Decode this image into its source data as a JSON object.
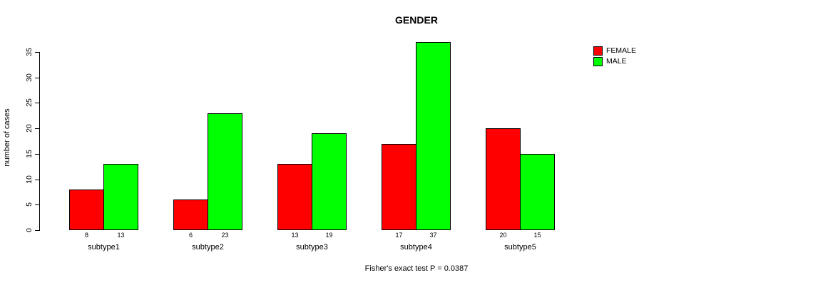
{
  "chart_data": {
    "type": "bar",
    "title": "GENDER",
    "ylabel": "number of cases",
    "caption": "Fisher's exact test P = 0.0387",
    "categories": [
      "subtype1",
      "subtype2",
      "subtype3",
      "subtype4",
      "subtype5"
    ],
    "series": [
      {
        "name": "FEMALE",
        "color": "#ff0000",
        "values": [
          8,
          6,
          13,
          17,
          20
        ]
      },
      {
        "name": "MALE",
        "color": "#00ff00",
        "values": [
          13,
          23,
          19,
          37,
          15
        ]
      }
    ],
    "ylim": [
      0,
      35
    ],
    "yticks": [
      0,
      5,
      10,
      15,
      20,
      25,
      30,
      35
    ],
    "legend_position": "top-right",
    "value_labels_shown": true,
    "grid": false,
    "colors": {
      "background": "#ffffff",
      "axis": "#000000",
      "text": "#000000",
      "female": "#ff0000",
      "male": "#00ff00"
    }
  }
}
